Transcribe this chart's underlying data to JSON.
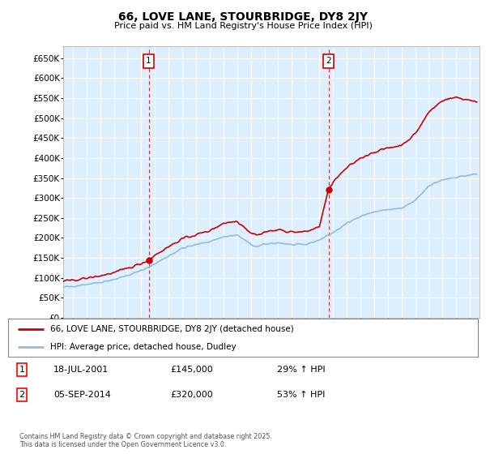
{
  "title": "66, LOVE LANE, STOURBRIDGE, DY8 2JY",
  "subtitle": "Price paid vs. HM Land Registry's House Price Index (HPI)",
  "ylim": [
    0,
    680000
  ],
  "yticks": [
    0,
    50000,
    100000,
    150000,
    200000,
    250000,
    300000,
    350000,
    400000,
    450000,
    500000,
    550000,
    600000,
    650000
  ],
  "xlim_start": 1995.3,
  "xlim_end": 2025.7,
  "plot_bg_color": "#ddeeff",
  "grid_color": "#ffffff",
  "sale1_date": 2001.54,
  "sale1_price": 145000,
  "sale1_label": "1",
  "sale2_date": 2014.67,
  "sale2_price": 320000,
  "sale2_label": "2",
  "hpi_color": "#90bce0",
  "price_color": "#cc0000",
  "vline_color": "#cc0000",
  "legend_label_price": "66, LOVE LANE, STOURBRIDGE, DY8 2JY (detached house)",
  "legend_label_hpi": "HPI: Average price, detached house, Dudley",
  "annotation1_date": "18-JUL-2001",
  "annotation1_price": "£145,000",
  "annotation1_hpi": "29% ↑ HPI",
  "annotation2_date": "05-SEP-2014",
  "annotation2_price": "£320,000",
  "annotation2_hpi": "53% ↑ HPI",
  "footer": "Contains HM Land Registry data © Crown copyright and database right 2025.\nThis data is licensed under the Open Government Licence v3.0."
}
